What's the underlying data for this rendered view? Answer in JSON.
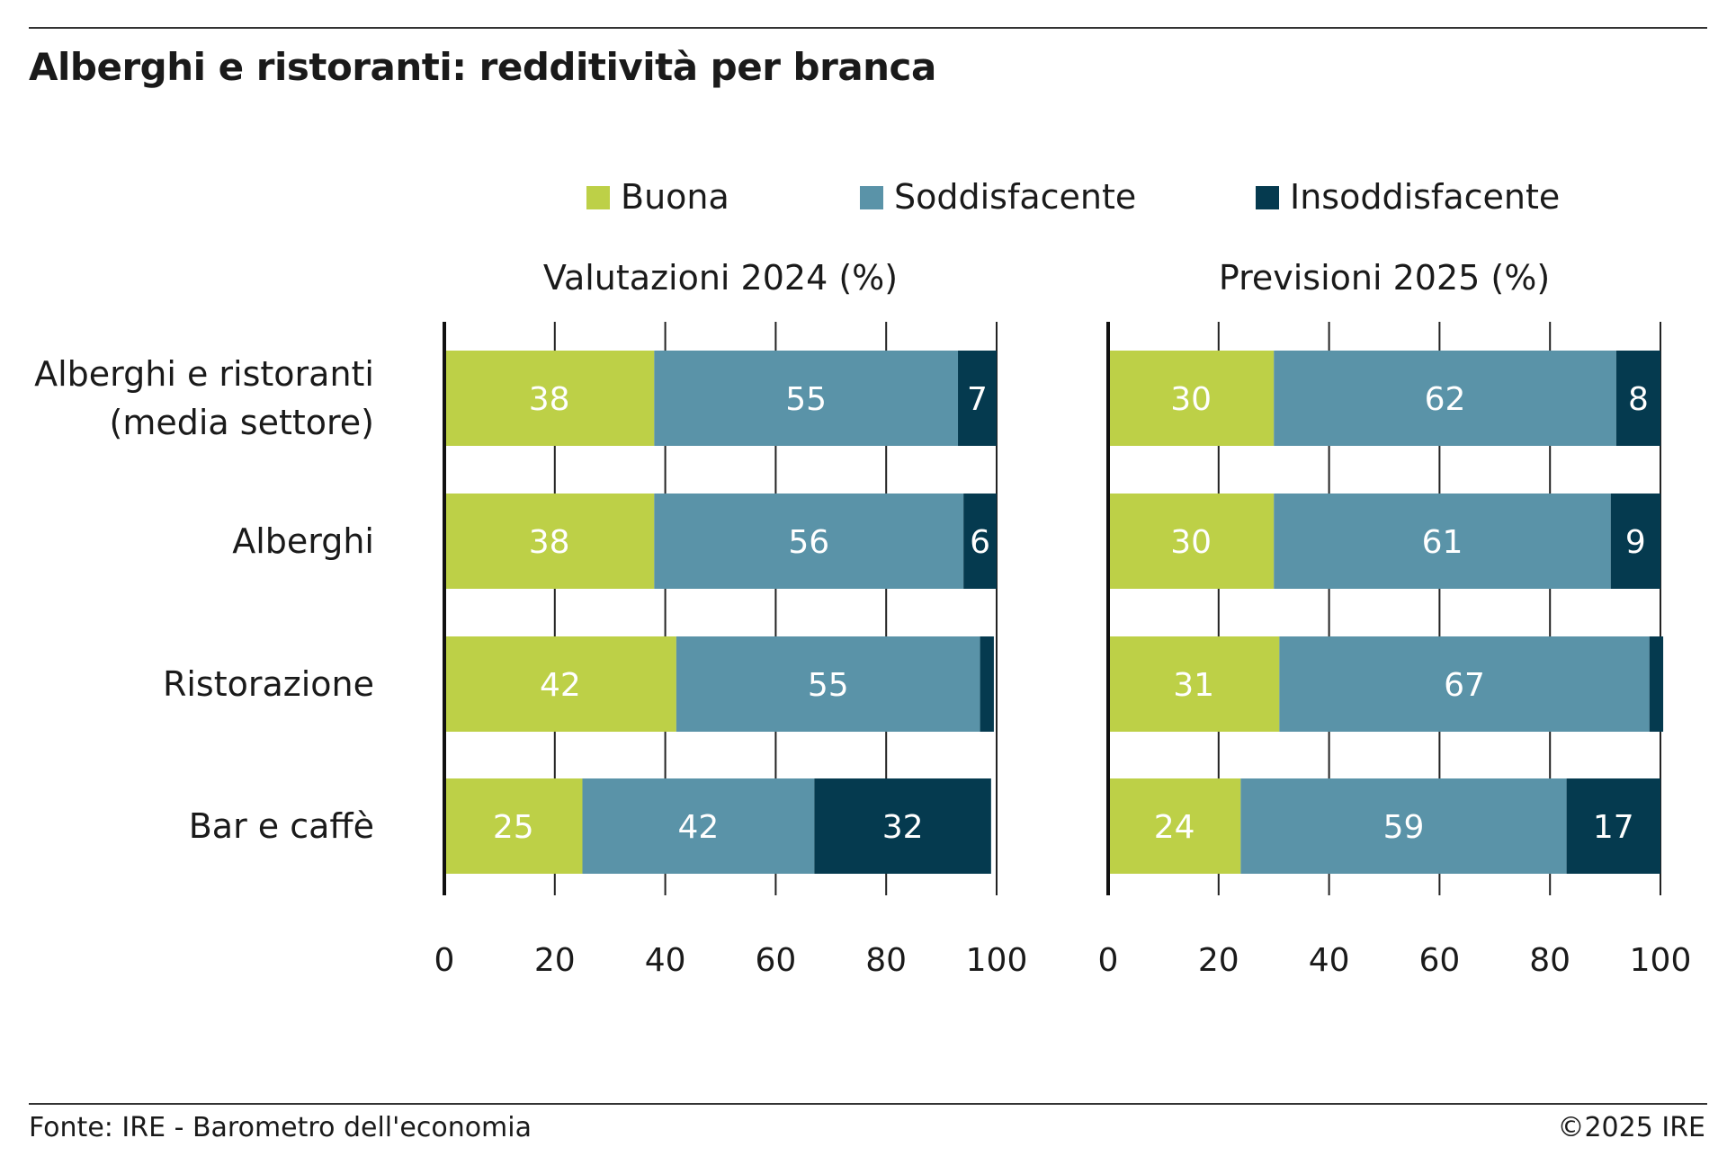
{
  "header": {
    "title": "Alberghi e ristoranti: redditività per branca"
  },
  "footer": {
    "source": "Fonte: IRE - Barometro dell'economia",
    "copyright": "©2025 IRE"
  },
  "legend": [
    {
      "label": "Buona",
      "color": "#bdd047"
    },
    {
      "label": "Soddisfacente",
      "color": "#5a93a8"
    },
    {
      "label": "Insoddisfacente",
      "color": "#053a4f"
    }
  ],
  "chart_data": [
    {
      "type": "bar",
      "orientation": "horizontal",
      "stacked": true,
      "title": "Valutazioni 2024 (%)",
      "categories": [
        "Alberghi e ristoranti (media settore)",
        "Alberghi",
        "Ristorazione",
        "Bar e caffè"
      ],
      "category_lines": [
        [
          "Alberghi e ristoranti",
          "(media settore)"
        ],
        [
          "Alberghi"
        ],
        [
          "Ristorazione"
        ],
        [
          "Bar e caffè"
        ]
      ],
      "series": [
        {
          "name": "Buona",
          "values": [
            38,
            38,
            42,
            25
          ],
          "labels": [
            "38",
            "38",
            "42",
            "25"
          ]
        },
        {
          "name": "Soddisfacente",
          "values": [
            55,
            56,
            55,
            42
          ],
          "labels": [
            "55",
            "56",
            "55",
            "42"
          ]
        },
        {
          "name": "Insoddisfacente",
          "values": [
            7,
            6,
            2.5,
            32
          ],
          "labels": [
            "7",
            "6",
            "",
            "32"
          ]
        }
      ],
      "xlim": [
        0,
        100
      ],
      "xticks": [
        "0",
        "20",
        "40",
        "60",
        "80",
        "100"
      ],
      "grid": true,
      "legend_position": "top"
    },
    {
      "type": "bar",
      "orientation": "horizontal",
      "stacked": true,
      "title": "Previsioni 2025 (%)",
      "categories": [
        "Alberghi e ristoranti (media settore)",
        "Alberghi",
        "Ristorazione",
        "Bar e caffè"
      ],
      "series": [
        {
          "name": "Buona",
          "values": [
            30,
            30,
            31,
            24
          ],
          "labels": [
            "30",
            "30",
            "31",
            "24"
          ]
        },
        {
          "name": "Soddisfacente",
          "values": [
            62,
            61,
            67,
            59
          ],
          "labels": [
            "62",
            "61",
            "67",
            "59"
          ]
        },
        {
          "name": "Insoddisfacente",
          "values": [
            8,
            9,
            2.5,
            17
          ],
          "labels": [
            "8",
            "9",
            "",
            "17"
          ]
        }
      ],
      "xlim": [
        0,
        100
      ],
      "xticks": [
        "0",
        "20",
        "40",
        "60",
        "80",
        "100"
      ],
      "grid": true,
      "legend_position": "top"
    }
  ]
}
